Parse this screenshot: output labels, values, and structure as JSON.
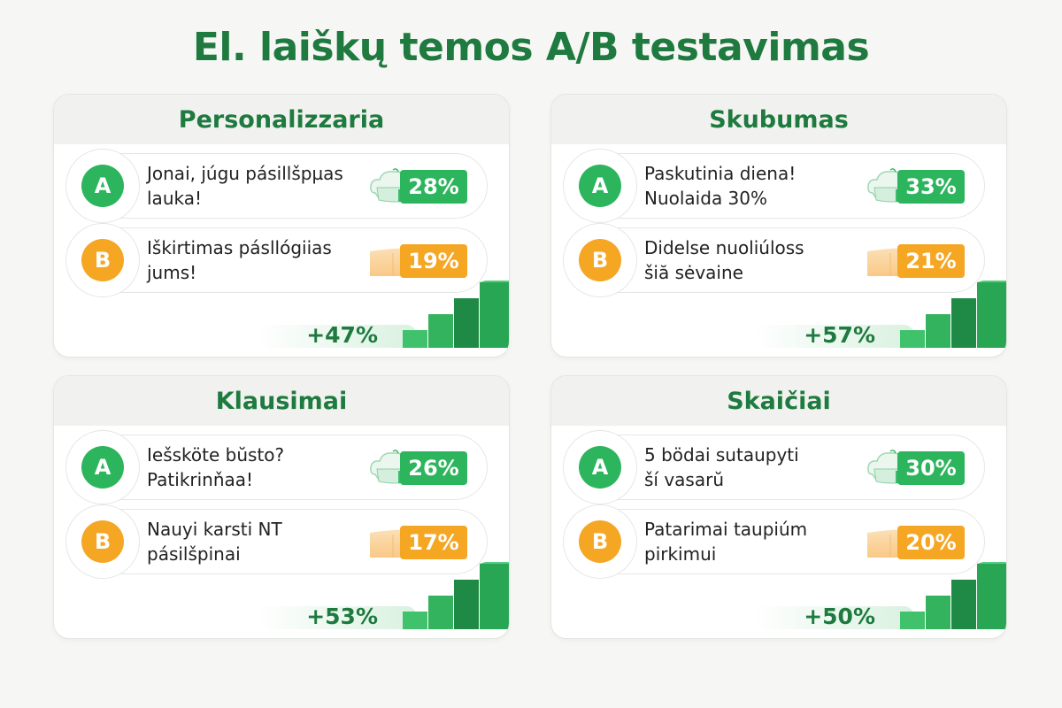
{
  "title": "El. laiškų temos A/B testavimas",
  "colors": {
    "brand_green": "#1e7a3f",
    "variant_a": "#2db55d",
    "variant_b": "#f5a623"
  },
  "cards": [
    {
      "category": "Personalizzaria",
      "variant_a": {
        "label": "A",
        "subject_line1": "Jonai, júgu pásillšpµas",
        "subject_line2": "lauka!",
        "open_rate": "28%",
        "icon": "cloud-house-icon"
      },
      "variant_b": {
        "label": "B",
        "subject_line1": "Iškirtimas pásllógiias",
        "subject_line2": "jums!",
        "open_rate": "19%",
        "icon": "envelope-icon"
      },
      "uplift": "+47%"
    },
    {
      "category": "Skubumas",
      "variant_a": {
        "label": "A",
        "subject_line1": "Paskutinia diena!",
        "subject_line2": "Nuolaida 30%",
        "open_rate": "33%",
        "icon": "cloud-house-icon"
      },
      "variant_b": {
        "label": "B",
        "subject_line1": "Didelse nuoliúloss",
        "subject_line2": "šiă sėvaine",
        "open_rate": "21%",
        "icon": "envelope-icon"
      },
      "uplift": "+57%"
    },
    {
      "category": "Klausimai",
      "variant_a": {
        "label": "A",
        "subject_line1": "Iešsköte bŭsto?",
        "subject_line2": "Patikrinňaa!",
        "open_rate": "26%",
        "icon": "cloud-house-icon"
      },
      "variant_b": {
        "label": "B",
        "subject_line1": "Nauyi karsti NT",
        "subject_line2": "pásilšpinai",
        "open_rate": "17%",
        "icon": "envelope-icon"
      },
      "uplift": "+53%"
    },
    {
      "category": "Skaičiai",
      "variant_a": {
        "label": "A",
        "subject_line1": "5 bödai sutaupyti",
        "subject_line2": "ší vasarŭ",
        "open_rate": "30%",
        "icon": "cloud-house-icon"
      },
      "variant_b": {
        "label": "B",
        "subject_line1": "Patarimai taupiúm",
        "subject_line2": "pirkimui",
        "open_rate": "20%",
        "icon": "envelope-icon"
      },
      "uplift": "+50%"
    }
  ]
}
